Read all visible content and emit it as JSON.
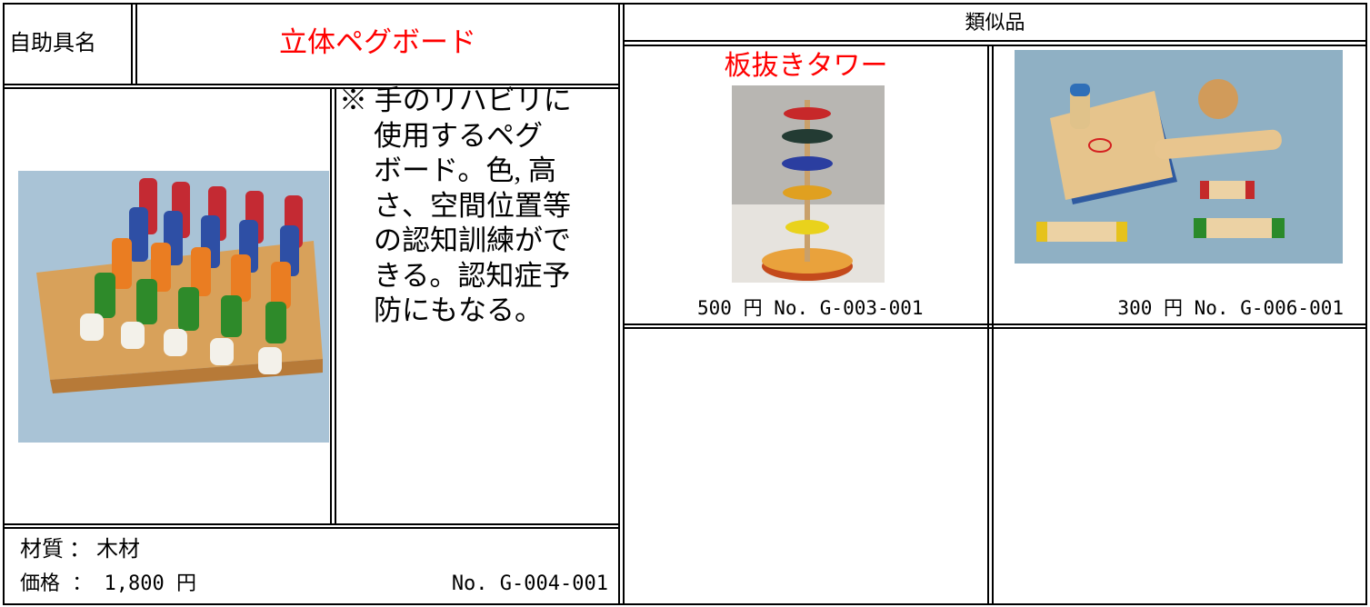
{
  "header": {
    "label": "自助具名",
    "title": "立体ペグボード",
    "similar_heading": "類似品"
  },
  "main_item": {
    "description_lines": [
      "※ 手のリハビリに",
      "使用するペグ",
      "ボード。色, 高",
      "さ、空間位置等",
      "の認知訓練がで",
      "きる。認知症予",
      "防にもなる。"
    ],
    "material": "材質 ： 木材",
    "price": "価格 ： 1,800 円",
    "number": "No. G-004-001"
  },
  "similar_items": [
    {
      "name": "板抜きタワー",
      "caption": "500 円 No. G-003-001"
    },
    {
      "caption": "300 円 No. G-006-001"
    }
  ]
}
